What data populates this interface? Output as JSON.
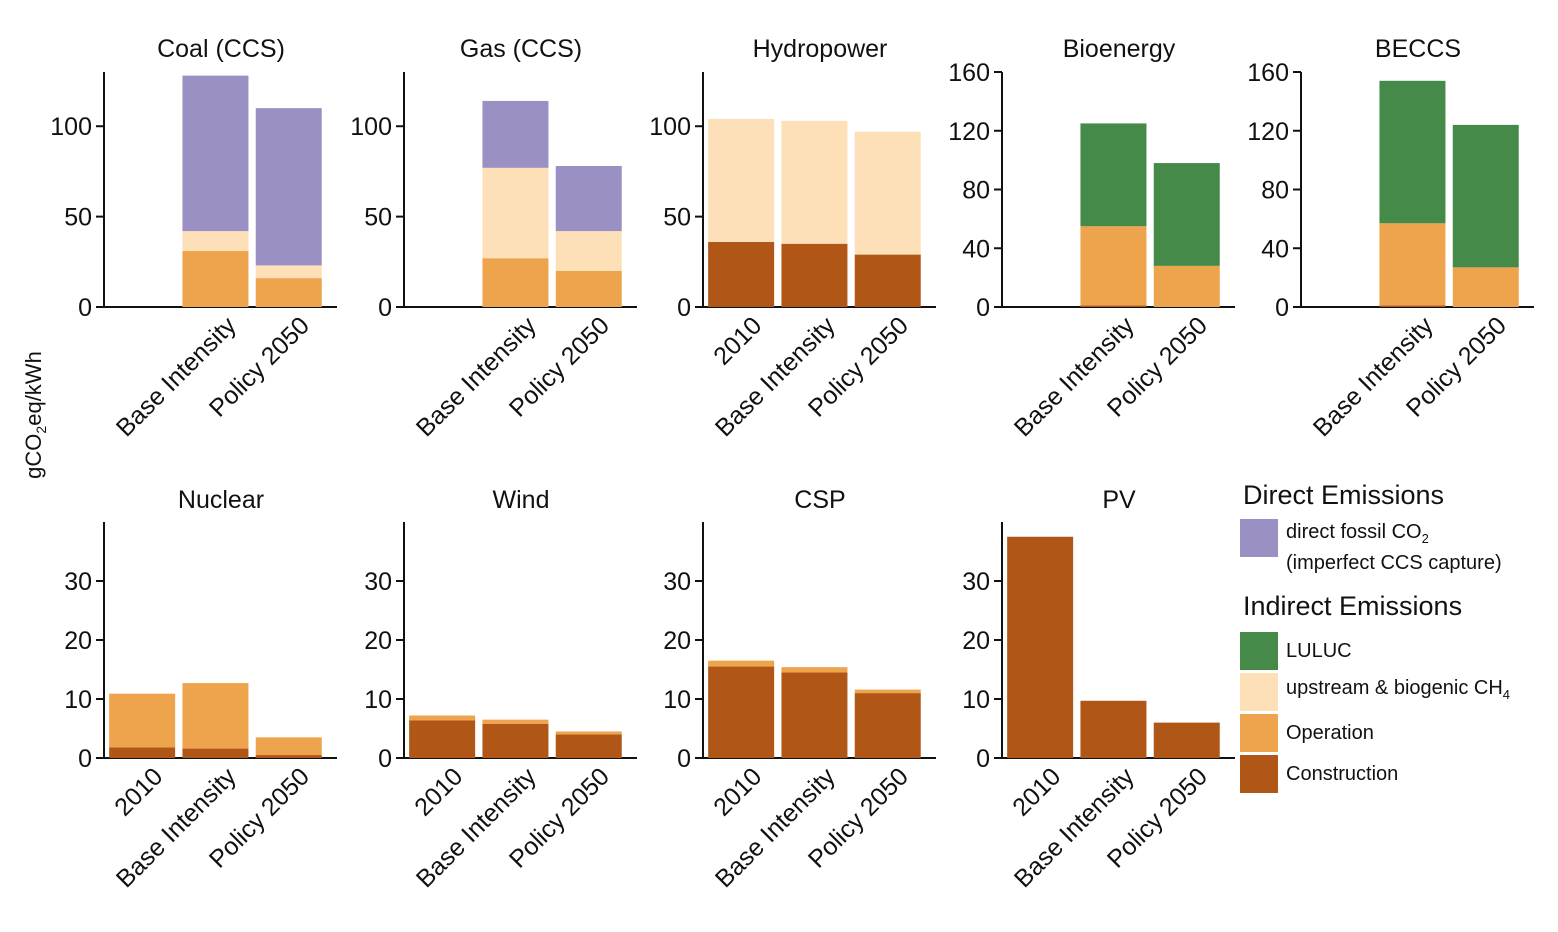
{
  "ylabel": {
    "pre": "gCO",
    "sub": "2",
    "post": "eq/kWh"
  },
  "colors": {
    "direct_fossil": "#9a90c4",
    "luluc": "#458a48",
    "upstream": "#fde0b8",
    "operation": "#eea34d",
    "construction": "#b05718"
  },
  "legend": {
    "direct_heading": "Direct Emissions",
    "indirect_heading": "Indirect Emissions",
    "items": [
      {
        "key": "direct_fossil",
        "label_pre": "direct fossil CO",
        "label_sub": "2",
        "label_line2": "(imperfect CCS capture)",
        "group": "direct"
      },
      {
        "key": "luluc",
        "label_pre": "LULUC",
        "group": "indirect"
      },
      {
        "key": "upstream",
        "label_pre": "upstream & biogenic CH",
        "label_sub": "4",
        "group": "indirect"
      },
      {
        "key": "operation",
        "label_pre": "Operation",
        "group": "indirect"
      },
      {
        "key": "construction",
        "label_pre": "Construction",
        "group": "indirect"
      }
    ]
  },
  "chart_data": [
    {
      "type": "bar",
      "stacked": true,
      "title": "Coal (CCS)",
      "categories": [
        "Base Intensity",
        "Policy 2050"
      ],
      "ylim": [
        0,
        130
      ],
      "yticks": [
        0,
        50,
        100
      ],
      "series": [
        {
          "key": "construction",
          "values": [
            0,
            0
          ]
        },
        {
          "key": "operation",
          "values": [
            31,
            16
          ]
        },
        {
          "key": "upstream",
          "values": [
            11,
            7
          ]
        },
        {
          "key": "luluc",
          "values": [
            0,
            0
          ]
        },
        {
          "key": "direct_fossil",
          "values": [
            86,
            87
          ]
        }
      ]
    },
    {
      "type": "bar",
      "stacked": true,
      "title": "Gas (CCS)",
      "categories": [
        "Base Intensity",
        "Policy 2050"
      ],
      "ylim": [
        0,
        130
      ],
      "yticks": [
        0,
        50,
        100
      ],
      "series": [
        {
          "key": "construction",
          "values": [
            0,
            0
          ]
        },
        {
          "key": "operation",
          "values": [
            27,
            20
          ]
        },
        {
          "key": "upstream",
          "values": [
            50,
            22
          ]
        },
        {
          "key": "luluc",
          "values": [
            0,
            0
          ]
        },
        {
          "key": "direct_fossil",
          "values": [
            37,
            36
          ]
        }
      ]
    },
    {
      "type": "bar",
      "stacked": true,
      "title": "Hydropower",
      "categories": [
        "2010",
        "Base Intensity",
        "Policy 2050"
      ],
      "ylim": [
        0,
        130
      ],
      "yticks": [
        0,
        50,
        100
      ],
      "series": [
        {
          "key": "construction",
          "values": [
            36,
            35,
            29
          ]
        },
        {
          "key": "operation",
          "values": [
            0,
            0,
            0
          ]
        },
        {
          "key": "upstream",
          "values": [
            68,
            68,
            68
          ]
        },
        {
          "key": "luluc",
          "values": [
            0,
            0,
            0
          ]
        },
        {
          "key": "direct_fossil",
          "values": [
            0,
            0,
            0
          ]
        }
      ]
    },
    {
      "type": "bar",
      "stacked": true,
      "title": "Bioenergy",
      "categories": [
        "Base Intensity",
        "Policy 2050"
      ],
      "ylim": [
        0,
        160
      ],
      "yticks": [
        0,
        40,
        80,
        120,
        160
      ],
      "series": [
        {
          "key": "construction",
          "values": [
            1,
            0
          ]
        },
        {
          "key": "operation",
          "values": [
            54,
            28
          ]
        },
        {
          "key": "upstream",
          "values": [
            0,
            0
          ]
        },
        {
          "key": "luluc",
          "values": [
            70,
            70
          ]
        },
        {
          "key": "direct_fossil",
          "values": [
            0,
            0
          ]
        }
      ]
    },
    {
      "type": "bar",
      "stacked": true,
      "title": "BECCS",
      "categories": [
        "Base Intensity",
        "Policy 2050"
      ],
      "ylim": [
        0,
        160
      ],
      "yticks": [
        0,
        40,
        80,
        120,
        160
      ],
      "series": [
        {
          "key": "construction",
          "values": [
            1,
            0
          ]
        },
        {
          "key": "operation",
          "values": [
            56,
            27
          ]
        },
        {
          "key": "upstream",
          "values": [
            0,
            0
          ]
        },
        {
          "key": "luluc",
          "values": [
            97,
            97
          ]
        },
        {
          "key": "direct_fossil",
          "values": [
            0,
            0
          ]
        }
      ]
    },
    {
      "type": "bar",
      "stacked": true,
      "title": "Nuclear",
      "categories": [
        "2010",
        "Base Intensity",
        "Policy 2050"
      ],
      "ylim": [
        0,
        40
      ],
      "yticks": [
        0,
        10,
        20,
        30
      ],
      "series": [
        {
          "key": "construction",
          "values": [
            1.8,
            1.6,
            0.5
          ]
        },
        {
          "key": "operation",
          "values": [
            9.1,
            11.1,
            3.0
          ]
        },
        {
          "key": "upstream",
          "values": [
            0,
            0,
            0
          ]
        },
        {
          "key": "luluc",
          "values": [
            0,
            0,
            0
          ]
        },
        {
          "key": "direct_fossil",
          "values": [
            0,
            0,
            0
          ]
        }
      ]
    },
    {
      "type": "bar",
      "stacked": true,
      "title": "Wind",
      "categories": [
        "2010",
        "Base Intensity",
        "Policy 2050"
      ],
      "ylim": [
        0,
        40
      ],
      "yticks": [
        0,
        10,
        20,
        30
      ],
      "series": [
        {
          "key": "construction",
          "values": [
            6.4,
            5.8,
            4.0
          ]
        },
        {
          "key": "operation",
          "values": [
            0.8,
            0.7,
            0.5
          ]
        },
        {
          "key": "upstream",
          "values": [
            0,
            0,
            0
          ]
        },
        {
          "key": "luluc",
          "values": [
            0,
            0,
            0
          ]
        },
        {
          "key": "direct_fossil",
          "values": [
            0,
            0,
            0
          ]
        }
      ]
    },
    {
      "type": "bar",
      "stacked": true,
      "title": "CSP",
      "categories": [
        "2010",
        "Base Intensity",
        "Policy 2050"
      ],
      "ylim": [
        0,
        40
      ],
      "yticks": [
        0,
        10,
        20,
        30
      ],
      "series": [
        {
          "key": "construction",
          "values": [
            15.5,
            14.5,
            11.0
          ]
        },
        {
          "key": "operation",
          "values": [
            1.0,
            0.9,
            0.6
          ]
        },
        {
          "key": "upstream",
          "values": [
            0,
            0,
            0
          ]
        },
        {
          "key": "luluc",
          "values": [
            0,
            0,
            0
          ]
        },
        {
          "key": "direct_fossil",
          "values": [
            0,
            0,
            0
          ]
        }
      ]
    },
    {
      "type": "bar",
      "stacked": true,
      "title": "PV",
      "categories": [
        "2010",
        "Base Intensity",
        "Policy 2050"
      ],
      "ylim": [
        0,
        40
      ],
      "yticks": [
        0,
        10,
        20,
        30
      ],
      "series": [
        {
          "key": "construction",
          "values": [
            37.5,
            9.7,
            6.0
          ]
        },
        {
          "key": "operation",
          "values": [
            0,
            0,
            0
          ]
        },
        {
          "key": "upstream",
          "values": [
            0,
            0,
            0
          ]
        },
        {
          "key": "luluc",
          "values": [
            0,
            0,
            0
          ]
        },
        {
          "key": "direct_fossil",
          "values": [
            0,
            0,
            0
          ]
        }
      ]
    }
  ]
}
